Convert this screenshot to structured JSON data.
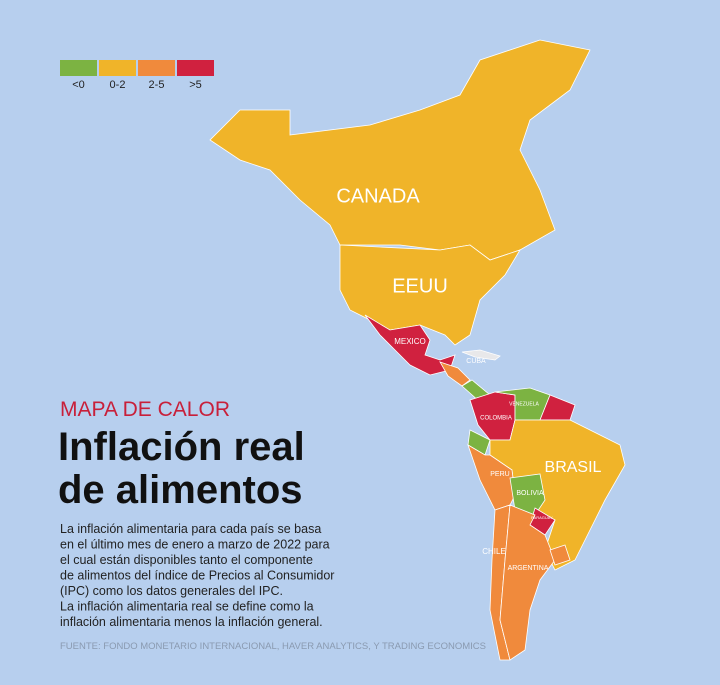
{
  "legend": [
    {
      "label": "<0",
      "color": "#7cb342"
    },
    {
      "label": "0-2",
      "color": "#f0b429"
    },
    {
      "label": "2-5",
      "color": "#f08a3c"
    },
    {
      "label": ">5",
      "color": "#d0213f"
    }
  ],
  "kicker": "MAPA DE CALOR",
  "title_lines": [
    "Inflación real",
    "de alimentos"
  ],
  "description_lines": [
    "La inflación alimentaria para cada país se basa",
    "en el último mes de enero a marzo de 2022 para",
    "el cual están disponibles tanto el componente",
    "de alimentos del índice de Precios al Consumidor",
    "(IPC) como los datos generales del IPC.",
    "La inflación alimentaria real se define como la",
    "inflación alimentaria menos la inflación general."
  ],
  "source": "FUENTE: FONDO MONETARIO INTERNACIONAL, HAVER ANALYTICS, Y TRADING ECONOMICS",
  "regions": [
    {
      "label": "CANADA",
      "color": "#f0b429"
    },
    {
      "label": "EEUU",
      "color": "#f0b429"
    },
    {
      "label": "MEXICO",
      "color": "#d0213f"
    },
    {
      "label": "CUBA",
      "color": "#e8e8ea"
    },
    {
      "label": "COLOMBIA",
      "color": "#d0213f"
    },
    {
      "label": "VENEZUELA",
      "color": "#7cb342"
    },
    {
      "label": "BRASIL",
      "color": "#f0b429"
    },
    {
      "label": "PERU",
      "color": "#f08a3c"
    },
    {
      "label": "BOLIVIA",
      "color": "#7cb342"
    },
    {
      "label": "PARAGUAY",
      "color": "#d0213f"
    },
    {
      "label": "CHILE",
      "color": "#f08a3c"
    },
    {
      "label": "ARGENTINA",
      "color": "#f08a3c"
    }
  ]
}
